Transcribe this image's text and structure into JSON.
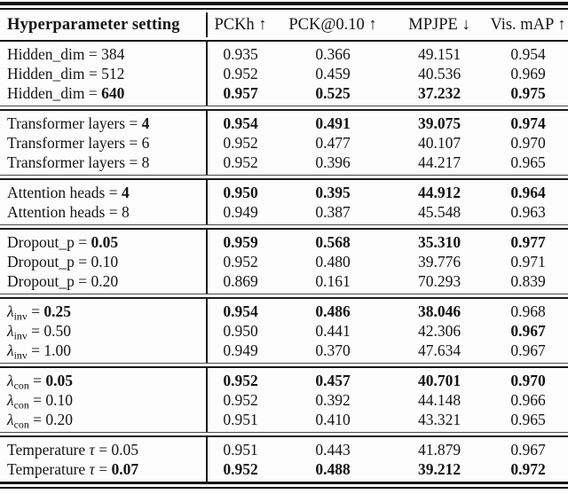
{
  "table": {
    "header": {
      "hyperparameter_col": "Hyperparameter setting",
      "metric_cols": [
        "PCKh ↑",
        "PCK@0.10 ↑",
        "MPJPE ↓",
        "Vis. mAP ↑"
      ]
    },
    "text_color": "#141414",
    "rule_color": "#161616",
    "sections": [
      {
        "name": "hidden-dim",
        "rows": [
          {
            "label": [
              {
                "t": "Hidden_dim = 384"
              }
            ],
            "values": [
              {
                "v": "0.935"
              },
              {
                "v": "0.366"
              },
              {
                "v": "49.151"
              },
              {
                "v": "0.954"
              }
            ]
          },
          {
            "label": [
              {
                "t": "Hidden_dim = 512"
              }
            ],
            "values": [
              {
                "v": "0.952"
              },
              {
                "v": "0.459"
              },
              {
                "v": "40.536"
              },
              {
                "v": "0.969"
              }
            ]
          },
          {
            "label": [
              {
                "t": "Hidden_dim = "
              },
              {
                "t": "640",
                "b": true
              }
            ],
            "values": [
              {
                "v": "0.957",
                "b": true
              },
              {
                "v": "0.525",
                "b": true
              },
              {
                "v": "37.232",
                "b": true
              },
              {
                "v": "0.975",
                "b": true
              }
            ]
          }
        ]
      },
      {
        "name": "transformer-layers",
        "rows": [
          {
            "label": [
              {
                "t": "Transformer layers = "
              },
              {
                "t": "4",
                "b": true
              }
            ],
            "values": [
              {
                "v": "0.954",
                "b": true
              },
              {
                "v": "0.491",
                "b": true
              },
              {
                "v": "39.075",
                "b": true
              },
              {
                "v": "0.974",
                "b": true
              }
            ]
          },
          {
            "label": [
              {
                "t": "Transformer layers = 6"
              }
            ],
            "values": [
              {
                "v": "0.952"
              },
              {
                "v": "0.477"
              },
              {
                "v": "40.107"
              },
              {
                "v": "0.970"
              }
            ]
          },
          {
            "label": [
              {
                "t": "Transformer layers = 8"
              }
            ],
            "values": [
              {
                "v": "0.952"
              },
              {
                "v": "0.396"
              },
              {
                "v": "44.217"
              },
              {
                "v": "0.965"
              }
            ]
          }
        ]
      },
      {
        "name": "attention-heads",
        "rows": [
          {
            "label": [
              {
                "t": "Attention heads = "
              },
              {
                "t": "4",
                "b": true
              }
            ],
            "values": [
              {
                "v": "0.950",
                "b": true
              },
              {
                "v": "0.395",
                "b": true
              },
              {
                "v": "44.912",
                "b": true
              },
              {
                "v": "0.964",
                "b": true
              }
            ]
          },
          {
            "label": [
              {
                "t": "Attention heads = 8"
              }
            ],
            "values": [
              {
                "v": "0.949"
              },
              {
                "v": "0.387"
              },
              {
                "v": "45.548"
              },
              {
                "v": "0.963"
              }
            ]
          }
        ]
      },
      {
        "name": "dropout",
        "rows": [
          {
            "label": [
              {
                "t": "Dropout_p = "
              },
              {
                "t": "0.05",
                "b": true
              }
            ],
            "values": [
              {
                "v": "0.959",
                "b": true
              },
              {
                "v": "0.568",
                "b": true
              },
              {
                "v": "35.310",
                "b": true
              },
              {
                "v": "0.977",
                "b": true
              }
            ]
          },
          {
            "label": [
              {
                "t": "Dropout_p = 0.10"
              }
            ],
            "values": [
              {
                "v": "0.952"
              },
              {
                "v": "0.480"
              },
              {
                "v": "39.776"
              },
              {
                "v": "0.971"
              }
            ]
          },
          {
            "label": [
              {
                "t": "Dropout_p = 0.20"
              }
            ],
            "values": [
              {
                "v": "0.869"
              },
              {
                "v": "0.161"
              },
              {
                "v": "70.293"
              },
              {
                "v": "0.839"
              }
            ]
          }
        ]
      },
      {
        "name": "lambda-inv",
        "rows": [
          {
            "label": [
              {
                "t": "λ",
                "i": true
              },
              {
                "t": "inv",
                "sub": true
              },
              {
                "t": " = "
              },
              {
                "t": "0.25",
                "b": true
              }
            ],
            "values": [
              {
                "v": "0.954",
                "b": true
              },
              {
                "v": "0.486",
                "b": true
              },
              {
                "v": "38.046",
                "b": true
              },
              {
                "v": "0.968"
              }
            ]
          },
          {
            "label": [
              {
                "t": "λ",
                "i": true
              },
              {
                "t": "inv",
                "sub": true
              },
              {
                "t": " = 0.50"
              }
            ],
            "values": [
              {
                "v": "0.950"
              },
              {
                "v": "0.441"
              },
              {
                "v": "42.306"
              },
              {
                "v": "0.967",
                "b": true
              }
            ]
          },
          {
            "label": [
              {
                "t": "λ",
                "i": true
              },
              {
                "t": "inv",
                "sub": true
              },
              {
                "t": " = 1.00"
              }
            ],
            "values": [
              {
                "v": "0.949"
              },
              {
                "v": "0.370"
              },
              {
                "v": "47.634"
              },
              {
                "v": "0.967"
              }
            ]
          }
        ]
      },
      {
        "name": "lambda-con",
        "rows": [
          {
            "label": [
              {
                "t": "λ",
                "i": true
              },
              {
                "t": "con",
                "sub": true
              },
              {
                "t": " = "
              },
              {
                "t": "0.05",
                "b": true
              }
            ],
            "values": [
              {
                "v": "0.952",
                "b": true
              },
              {
                "v": "0.457",
                "b": true
              },
              {
                "v": "40.701",
                "b": true
              },
              {
                "v": "0.970",
                "b": true
              }
            ]
          },
          {
            "label": [
              {
                "t": "λ",
                "i": true
              },
              {
                "t": "con",
                "sub": true
              },
              {
                "t": " = 0.10"
              }
            ],
            "values": [
              {
                "v": "0.952"
              },
              {
                "v": "0.392"
              },
              {
                "v": "44.148"
              },
              {
                "v": "0.966"
              }
            ]
          },
          {
            "label": [
              {
                "t": "λ",
                "i": true
              },
              {
                "t": "con",
                "sub": true
              },
              {
                "t": " = 0.20"
              }
            ],
            "values": [
              {
                "v": "0.951"
              },
              {
                "v": "0.410"
              },
              {
                "v": "43.321"
              },
              {
                "v": "0.965"
              }
            ]
          }
        ]
      },
      {
        "name": "temperature",
        "rows": [
          {
            "label": [
              {
                "t": "Temperature "
              },
              {
                "t": "τ",
                "i": true
              },
              {
                "t": " = 0.05"
              }
            ],
            "values": [
              {
                "v": "0.951"
              },
              {
                "v": "0.443"
              },
              {
                "v": "41.879"
              },
              {
                "v": "0.967"
              }
            ]
          },
          {
            "label": [
              {
                "t": "Temperature "
              },
              {
                "t": "τ",
                "i": true
              },
              {
                "t": " = "
              },
              {
                "t": "0.07",
                "b": true
              }
            ],
            "values": [
              {
                "v": "0.952",
                "b": true
              },
              {
                "v": "0.488",
                "b": true
              },
              {
                "v": "39.212",
                "b": true
              },
              {
                "v": "0.972",
                "b": true
              }
            ]
          }
        ]
      }
    ]
  }
}
